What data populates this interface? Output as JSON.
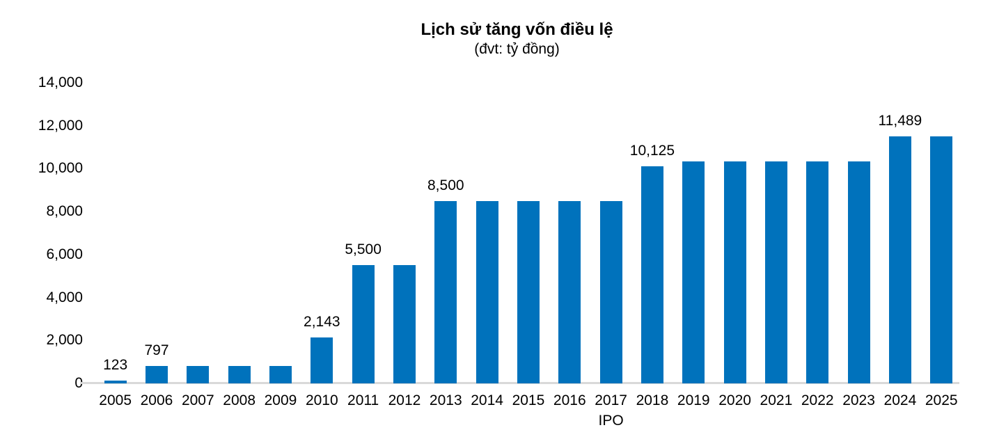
{
  "chart_data": {
    "type": "bar",
    "title": "Lịch sử tăng vốn điều lệ",
    "subtitle": "(đvt: tỷ đồng)",
    "xlabel": "",
    "ylabel": "",
    "unit": "tỷ đồng",
    "categories": [
      "2005",
      "2006",
      "2007",
      "2008",
      "2009",
      "2010",
      "2011",
      "2012",
      "2013",
      "2014",
      "2015",
      "2016",
      "2017",
      "2018",
      "2019",
      "2020",
      "2021",
      "2022",
      "2023",
      "2024",
      "2025"
    ],
    "values": [
      123,
      797,
      797,
      797,
      797,
      2143,
      5500,
      5500,
      8500,
      8500,
      8500,
      8500,
      8500,
      10125,
      10350,
      10350,
      10350,
      10350,
      10350,
      11489,
      11489
    ],
    "data_labels": [
      "123",
      "797",
      "",
      "",
      "",
      "2,143",
      "5,500",
      "",
      "8,500",
      "",
      "",
      "",
      "",
      "10,125",
      "",
      "",
      "",
      "",
      "",
      "11,489",
      ""
    ],
    "x_annotations": [
      "",
      "",
      "",
      "",
      "",
      "",
      "",
      "",
      "",
      "",
      "",
      "",
      "IPO",
      "",
      "",
      "",
      "",
      "",
      "",
      "",
      ""
    ],
    "ylim": [
      0,
      14000
    ],
    "y_tick_step": 2000,
    "y_tick_labels": [
      "0",
      "2,000",
      "4,000",
      "6,000",
      "8,000",
      "10,000",
      "12,000",
      "14,000"
    ],
    "grid": "off",
    "legend": "none",
    "colors": {
      "bar": "#0072bc",
      "axis_line": "#d9d9d9",
      "text": "#000000"
    }
  }
}
